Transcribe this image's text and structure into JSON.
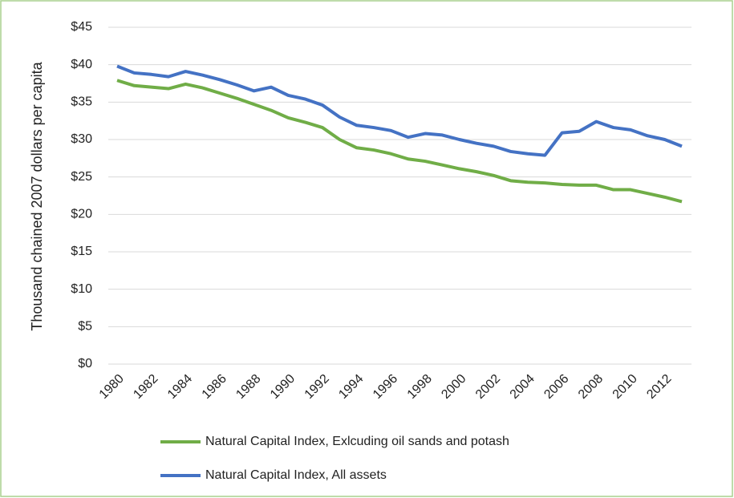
{
  "chart_data": {
    "type": "line",
    "y_label": "Thousand chained 2007 dollars per capita",
    "categories": [
      "1980",
      null,
      "1982",
      null,
      "1984",
      null,
      "1986",
      null,
      "1988",
      null,
      "1990",
      null,
      "1992",
      null,
      "1994",
      null,
      "1996",
      null,
      "1998",
      null,
      "2000",
      null,
      "2002",
      null,
      "2004",
      null,
      "2006",
      null,
      "2008",
      null,
      "2010",
      null,
      "2012",
      null
    ],
    "series": [
      {
        "name": "Natural Capital Index, Exlcuding oil sands and potash",
        "color": "#70ad47",
        "values": [
          37.9,
          37.2,
          37.0,
          36.8,
          37.4,
          36.9,
          36.2,
          35.5,
          34.7,
          33.9,
          32.9,
          32.3,
          31.6,
          30.0,
          28.9,
          28.6,
          28.1,
          27.4,
          27.1,
          26.6,
          26.1,
          25.7,
          25.2,
          24.5,
          24.3,
          24.2,
          24.0,
          23.9,
          23.9,
          23.3,
          23.3,
          22.8,
          22.3,
          21.7
        ]
      },
      {
        "name": "Natural Capital Index, All assets",
        "color": "#4472c4",
        "values": [
          39.8,
          38.9,
          38.7,
          38.4,
          39.1,
          38.6,
          38.0,
          37.3,
          36.5,
          37.0,
          35.9,
          35.4,
          34.6,
          33.0,
          31.9,
          31.6,
          31.2,
          30.3,
          30.8,
          30.6,
          30.0,
          29.5,
          29.1,
          28.4,
          28.1,
          27.9,
          30.9,
          31.1,
          32.4,
          31.6,
          31.3,
          30.5,
          30.0,
          29.1
        ]
      }
    ],
    "ylim": [
      0,
      45
    ],
    "yticks": [
      {
        "value": 0,
        "label": "$0"
      },
      {
        "value": 5,
        "label": "$5"
      },
      {
        "value": 10,
        "label": "$10"
      },
      {
        "value": 15,
        "label": "$15"
      },
      {
        "value": 20,
        "label": "$20"
      },
      {
        "value": 25,
        "label": "$25"
      },
      {
        "value": 30,
        "label": "$30"
      },
      {
        "value": 35,
        "label": "$35"
      },
      {
        "value": 40,
        "label": "$40"
      },
      {
        "value": 45,
        "label": "$45"
      }
    ],
    "grid": true
  }
}
